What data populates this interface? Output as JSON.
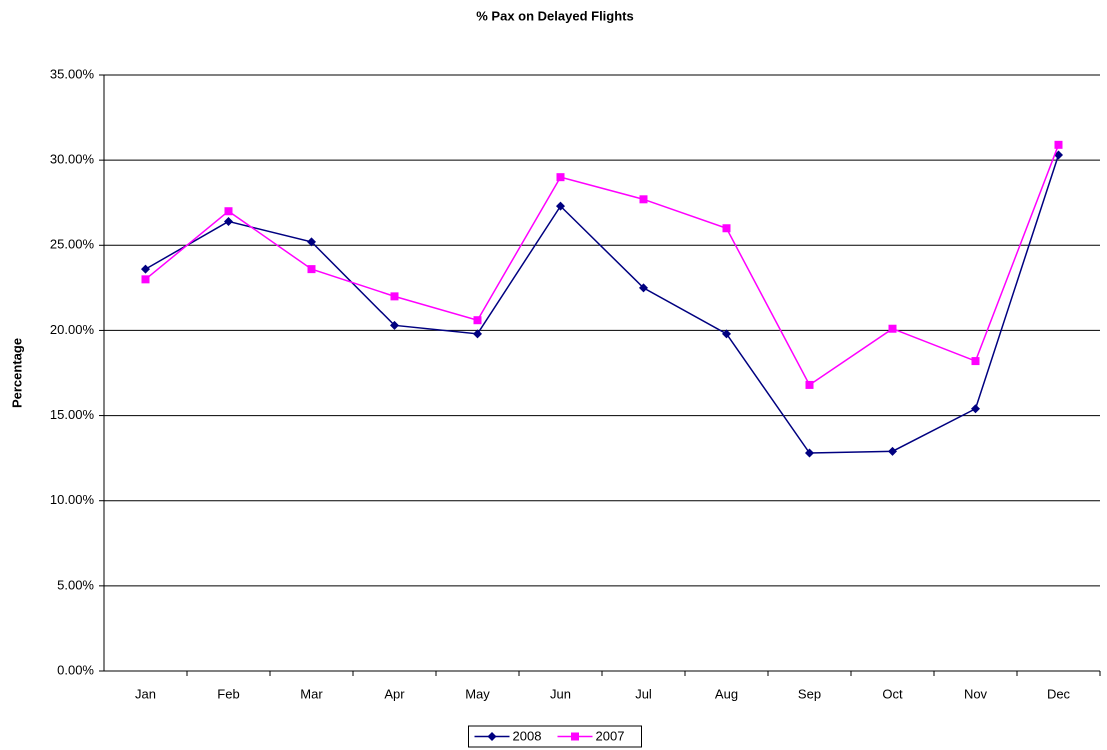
{
  "chart_data": {
    "type": "line",
    "title": "% Pax on Delayed Flights",
    "y_label": "Percentage",
    "categories": [
      "Jan",
      "Feb",
      "Mar",
      "Apr",
      "May",
      "Jun",
      "Jul",
      "Aug",
      "Sep",
      "Oct",
      "Nov",
      "Dec"
    ],
    "series": [
      {
        "name": "2008",
        "color": "#000080",
        "marker": "diamond",
        "values": [
          23.6,
          26.4,
          25.2,
          20.3,
          19.8,
          27.3,
          22.5,
          19.8,
          12.8,
          12.9,
          15.4,
          30.3
        ]
      },
      {
        "name": "2007",
        "color": "#ff00ff",
        "marker": "square",
        "values": [
          23.0,
          27.0,
          23.6,
          22.0,
          20.6,
          29.0,
          27.7,
          26.0,
          16.8,
          20.1,
          18.2,
          30.9
        ]
      }
    ],
    "ylim": [
      0,
      35
    ],
    "yticks": [
      {
        "value": 0,
        "label": "0.00%"
      },
      {
        "value": 5,
        "label": "5.00%"
      },
      {
        "value": 10,
        "label": "10.00%"
      },
      {
        "value": 15,
        "label": "15.00%"
      },
      {
        "value": 20,
        "label": "20.00%"
      },
      {
        "value": 25,
        "label": "25.00%"
      },
      {
        "value": 30,
        "label": "30.00%"
      },
      {
        "value": 35,
        "label": "35.00%"
      }
    ],
    "grid": true,
    "legend": "bottom"
  }
}
